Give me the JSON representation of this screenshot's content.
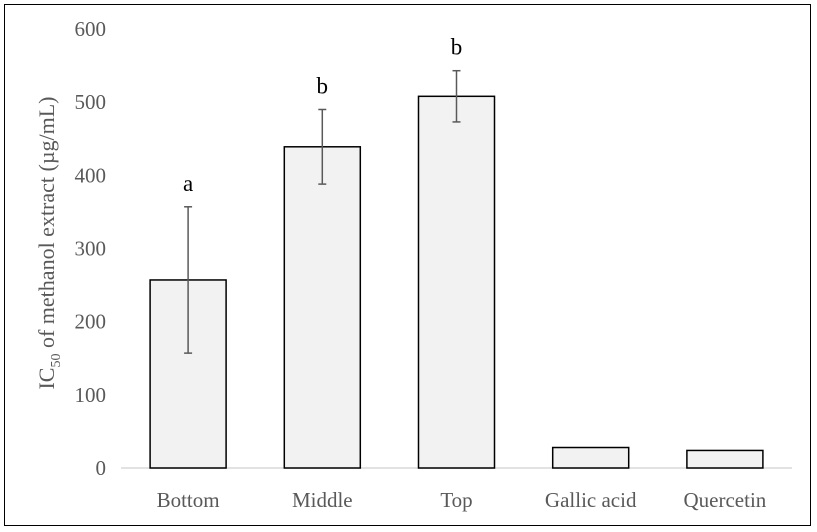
{
  "chart_data": {
    "type": "bar",
    "categories": [
      "Bottom",
      "Middle",
      "Top",
      "Gallic acid",
      "Quercetin"
    ],
    "values": [
      257,
      439,
      508,
      28,
      24
    ],
    "error": [
      100,
      51,
      35,
      null,
      null
    ],
    "significance": [
      "a",
      "b",
      "b",
      "",
      ""
    ],
    "ylabel_prefix": "IC",
    "ylabel_subscript": "50",
    "ylabel_suffix": " of methanol extract (µg/mL)",
    "xlabel": "",
    "ylim": [
      0,
      600
    ],
    "yticks": [
      0,
      100,
      200,
      300,
      400,
      500,
      600
    ],
    "grid": false,
    "legend": false,
    "colors": {
      "bar_fill": "#f2f2f2",
      "bar_stroke": "#000000",
      "error_bar": "#595959",
      "axis_line": "#d9d9d9",
      "tick_text": "#595959",
      "significance_text": "#000000"
    }
  }
}
